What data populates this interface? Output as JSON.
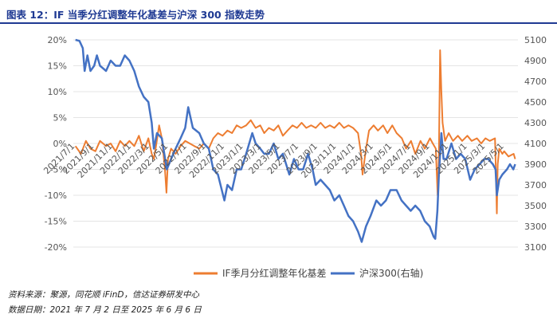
{
  "title": "图表 12：IF 当季分红调整年化基差与沪深 300 指数走势",
  "footer": {
    "source": "资料来源：聚源，同花顺 iFinD，信达证券研发中心",
    "date": "数据日期：2021 年 7 月 2 日至 2025 年 6 月 6 日"
  },
  "colors": {
    "basis": "#ed7d31",
    "index": "#4472c4"
  },
  "chart_data": {
    "type": "line",
    "title": "",
    "xlabel": "",
    "ylabel": "",
    "x_ticks": [
      "2021/7/1",
      "2021/9/1",
      "2021/11/1",
      "2022/1/1",
      "2022/3/1",
      "2022/5/1",
      "2022/7/1",
      "2022/9/1",
      "2022/11/1",
      "2023/1/1",
      "2023/3/1",
      "2023/5/1",
      "2023/7/1",
      "2023/9/1",
      "2023/11/1",
      "2024/1/1",
      "2024/3/1",
      "2024/5/1",
      "2024/7/1",
      "2024/9/1",
      "2024/11/1",
      "2025/1/1",
      "2025/3/1",
      "2025/5/1"
    ],
    "y_left": {
      "min": -20,
      "max": 20,
      "step": 5,
      "unit": "%",
      "ticks": [
        "-20%",
        "-15%",
        "-10%",
        "-5%",
        "0%",
        "5%",
        "10%",
        "15%",
        "20%"
      ]
    },
    "y_right": {
      "min": 3100,
      "max": 5100,
      "step": 200,
      "ticks": [
        "3100",
        "3300",
        "3500",
        "3700",
        "3900",
        "4100",
        "4300",
        "4500",
        "4700",
        "4900",
        "5100"
      ]
    },
    "legend_position": "bottom",
    "series": [
      {
        "name": "IF季月分红调整年化基差",
        "axis": "left",
        "points": [
          [
            "2021/7/2",
            -0.5
          ],
          [
            "2021/7/20",
            -2.0
          ],
          [
            "2021/8/5",
            0.5
          ],
          [
            "2021/8/20",
            -1.0
          ],
          [
            "2021/9/5",
            -1.5
          ],
          [
            "2021/9/20",
            0.5
          ],
          [
            "2021/10/10",
            -0.5
          ],
          [
            "2021/10/25",
            0.0
          ],
          [
            "2021/11/10",
            -1.5
          ],
          [
            "2021/11/25",
            0.5
          ],
          [
            "2021/12/10",
            -0.5
          ],
          [
            "2021/12/25",
            0.5
          ],
          [
            "2022/1/10",
            -0.5
          ],
          [
            "2022/1/25",
            1.5
          ],
          [
            "2022/2/10",
            -1.5
          ],
          [
            "2022/2/25",
            1.0
          ],
          [
            "2022/3/8",
            -2.0
          ],
          [
            "2022/3/15",
            -3.0
          ],
          [
            "2022/3/22",
            -0.5
          ],
          [
            "2022/4/1",
            3.5
          ],
          [
            "2022/4/10",
            1.0
          ],
          [
            "2022/4/20",
            -5.0
          ],
          [
            "2022/4/25",
            -9.5
          ],
          [
            "2022/4/30",
            -3.0
          ],
          [
            "2022/5/10",
            -1.0
          ],
          [
            "2022/5/25",
            -2.0
          ],
          [
            "2022/6/10",
            -0.5
          ],
          [
            "2022/6/25",
            0.5
          ],
          [
            "2022/7/10",
            0.0
          ],
          [
            "2022/7/25",
            -0.5
          ],
          [
            "2022/8/10",
            -1.0
          ],
          [
            "2022/8/25",
            0.0
          ],
          [
            "2022/9/10",
            -1.0
          ],
          [
            "2022/9/25",
            1.0
          ],
          [
            "2022/10/10",
            2.0
          ],
          [
            "2022/10/25",
            1.5
          ],
          [
            "2022/11/10",
            2.5
          ],
          [
            "2022/11/25",
            2.0
          ],
          [
            "2022/12/10",
            3.5
          ],
          [
            "2022/12/25",
            3.0
          ],
          [
            "2023/1/10",
            3.5
          ],
          [
            "2023/1/25",
            4.5
          ],
          [
            "2023/2/10",
            3.0
          ],
          [
            "2023/2/25",
            3.5
          ],
          [
            "2023/3/10",
            2.0
          ],
          [
            "2023/3/25",
            3.0
          ],
          [
            "2023/4/10",
            2.5
          ],
          [
            "2023/4/25",
            3.5
          ],
          [
            "2023/5/10",
            1.5
          ],
          [
            "2023/5/25",
            2.5
          ],
          [
            "2023/6/10",
            3.5
          ],
          [
            "2023/6/25",
            3.0
          ],
          [
            "2023/7/10",
            4.0
          ],
          [
            "2023/7/25",
            3.0
          ],
          [
            "2023/8/10",
            3.5
          ],
          [
            "2023/8/25",
            3.0
          ],
          [
            "2023/9/10",
            4.0
          ],
          [
            "2023/9/25",
            3.0
          ],
          [
            "2023/10/10",
            3.5
          ],
          [
            "2023/10/25",
            3.0
          ],
          [
            "2023/11/10",
            4.0
          ],
          [
            "2023/11/25",
            3.0
          ],
          [
            "2023/12/10",
            3.5
          ],
          [
            "2023/12/25",
            3.0
          ],
          [
            "2024/1/10",
            2.0
          ],
          [
            "2024/1/20",
            -2.0
          ],
          [
            "2024/1/25",
            -6.0
          ],
          [
            "2024/2/5",
            -1.0
          ],
          [
            "2024/2/15",
            2.5
          ],
          [
            "2024/3/1",
            3.5
          ],
          [
            "2024/3/15",
            2.5
          ],
          [
            "2024/4/1",
            3.5
          ],
          [
            "2024/4/15",
            2.0
          ],
          [
            "2024/5/1",
            3.5
          ],
          [
            "2024/5/15",
            2.0
          ],
          [
            "2024/6/1",
            1.0
          ],
          [
            "2024/6/15",
            -1.0
          ],
          [
            "2024/7/1",
            0.5
          ],
          [
            "2024/7/15",
            -2.0
          ],
          [
            "2024/8/1",
            0.5
          ],
          [
            "2024/8/15",
            -1.0
          ],
          [
            "2024/9/1",
            1.0
          ],
          [
            "2024/9/10",
            0.0
          ],
          [
            "2024/9/20",
            -1.0
          ],
          [
            "2024/9/26",
            -10.0
          ],
          [
            "2024/9/30",
            -2.0
          ],
          [
            "2024/10/4",
            18.0
          ],
          [
            "2024/10/8",
            10.0
          ],
          [
            "2024/10/12",
            4.0
          ],
          [
            "2024/10/20",
            0.5
          ],
          [
            "2024/11/1",
            2.0
          ],
          [
            "2024/11/15",
            0.5
          ],
          [
            "2024/12/1",
            1.5
          ],
          [
            "2024/12/15",
            0.5
          ],
          [
            "2025/1/1",
            1.5
          ],
          [
            "2025/1/15",
            0.5
          ],
          [
            "2025/2/1",
            1.0
          ],
          [
            "2025/2/15",
            0.0
          ],
          [
            "2025/3/1",
            1.0
          ],
          [
            "2025/3/15",
            0.5
          ],
          [
            "2025/4/1",
            1.0
          ],
          [
            "2025/4/3",
            -3.0
          ],
          [
            "2025/4/7",
            -13.5
          ],
          [
            "2025/4/10",
            -4.0
          ],
          [
            "2025/4/15",
            -1.0
          ],
          [
            "2025/4/25",
            -2.0
          ],
          [
            "2025/5/1",
            -1.5
          ],
          [
            "2025/5/15",
            -2.5
          ],
          [
            "2025/6/1",
            -2.0
          ],
          [
            "2025/6/6",
            -3.0
          ]
        ]
      },
      {
        "name": "沪深300(右轴)",
        "axis": "right",
        "points": [
          [
            "2021/7/2",
            5100
          ],
          [
            "2021/7/15",
            5090
          ],
          [
            "2021/7/26",
            5020
          ],
          [
            "2021/8/1",
            4800
          ],
          [
            "2021/8/10",
            4950
          ],
          [
            "2021/8/20",
            4800
          ],
          [
            "2021/9/1",
            4850
          ],
          [
            "2021/9/10",
            4950
          ],
          [
            "2021/9/20",
            4850
          ],
          [
            "2021/10/10",
            4800
          ],
          [
            "2021/10/25",
            4900
          ],
          [
            "2021/11/10",
            4850
          ],
          [
            "2021/11/25",
            4850
          ],
          [
            "2021/12/10",
            4950
          ],
          [
            "2021/12/25",
            4900
          ],
          [
            "2022/1/10",
            4800
          ],
          [
            "2022/1/25",
            4650
          ],
          [
            "2022/2/10",
            4550
          ],
          [
            "2022/2/25",
            4500
          ],
          [
            "2022/3/8",
            4300
          ],
          [
            "2022/3/15",
            4050
          ],
          [
            "2022/3/25",
            4200
          ],
          [
            "2022/4/10",
            4150
          ],
          [
            "2022/4/26",
            3850
          ],
          [
            "2022/5/10",
            3950
          ],
          [
            "2022/5/25",
            4050
          ],
          [
            "2022/6/10",
            4150
          ],
          [
            "2022/6/25",
            4250
          ],
          [
            "2022/7/5",
            4450
          ],
          [
            "2022/7/20",
            4250
          ],
          [
            "2022/8/10",
            4200
          ],
          [
            "2022/8/25",
            4100
          ],
          [
            "2022/9/10",
            4050
          ],
          [
            "2022/9/25",
            3850
          ],
          [
            "2022/10/10",
            3800
          ],
          [
            "2022/10/31",
            3550
          ],
          [
            "2022/11/10",
            3700
          ],
          [
            "2022/11/25",
            3650
          ],
          [
            "2022/12/10",
            3850
          ],
          [
            "2022/12/25",
            3850
          ],
          [
            "2023/1/10",
            4000
          ],
          [
            "2023/1/30",
            4200
          ],
          [
            "2023/2/10",
            4100
          ],
          [
            "2023/2/25",
            4050
          ],
          [
            "2023/3/10",
            4000
          ],
          [
            "2023/3/25",
            4000
          ],
          [
            "2023/4/10",
            4100
          ],
          [
            "2023/4/25",
            3950
          ],
          [
            "2023/5/10",
            4000
          ],
          [
            "2023/5/31",
            3800
          ],
          [
            "2023/6/15",
            3950
          ],
          [
            "2023/6/30",
            3850
          ],
          [
            "2023/7/15",
            3850
          ],
          [
            "2023/7/31",
            4000
          ],
          [
            "2023/8/15",
            3850
          ],
          [
            "2023/8/25",
            3700
          ],
          [
            "2023/9/10",
            3750
          ],
          [
            "2023/9/25",
            3700
          ],
          [
            "2023/10/10",
            3650
          ],
          [
            "2023/10/25",
            3550
          ],
          [
            "2023/11/10",
            3600
          ],
          [
            "2023/11/25",
            3500
          ],
          [
            "2023/12/10",
            3400
          ],
          [
            "2023/12/25",
            3350
          ],
          [
            "2024/1/10",
            3250
          ],
          [
            "2024/1/22",
            3150
          ],
          [
            "2024/2/5",
            3300
          ],
          [
            "2024/2/20",
            3400
          ],
          [
            "2024/3/10",
            3550
          ],
          [
            "2024/3/25",
            3500
          ],
          [
            "2024/4/10",
            3550
          ],
          [
            "2024/4/25",
            3650
          ],
          [
            "2024/5/15",
            3650
          ],
          [
            "2024/5/31",
            3550
          ],
          [
            "2024/6/15",
            3500
          ],
          [
            "2024/6/30",
            3450
          ],
          [
            "2024/7/15",
            3500
          ],
          [
            "2024/7/31",
            3450
          ],
          [
            "2024/8/15",
            3350
          ],
          [
            "2024/8/31",
            3300
          ],
          [
            "2024/9/13",
            3200
          ],
          [
            "2024/9/18",
            3180
          ],
          [
            "2024/9/25",
            3450
          ],
          [
            "2024/9/30",
            3800
          ],
          [
            "2024/10/8",
            4200
          ],
          [
            "2024/10/15",
            3950
          ],
          [
            "2024/10/25",
            3950
          ],
          [
            "2024/11/10",
            4100
          ],
          [
            "2024/11/25",
            3950
          ],
          [
            "2024/12/10",
            4000
          ],
          [
            "2024/12/25",
            3950
          ],
          [
            "2025/1/10",
            3750
          ],
          [
            "2025/1/25",
            3850
          ],
          [
            "2025/2/10",
            3900
          ],
          [
            "2025/2/25",
            3950
          ],
          [
            "2025/3/10",
            3950
          ],
          [
            "2025/3/25",
            3900
          ],
          [
            "2025/4/3",
            3850
          ],
          [
            "2025/4/7",
            3600
          ],
          [
            "2025/4/15",
            3750
          ],
          [
            "2025/4/25",
            3800
          ],
          [
            "2025/5/10",
            3850
          ],
          [
            "2025/5/20",
            3900
          ],
          [
            "2025/5/31",
            3850
          ],
          [
            "2025/6/6",
            3900
          ]
        ]
      }
    ]
  }
}
